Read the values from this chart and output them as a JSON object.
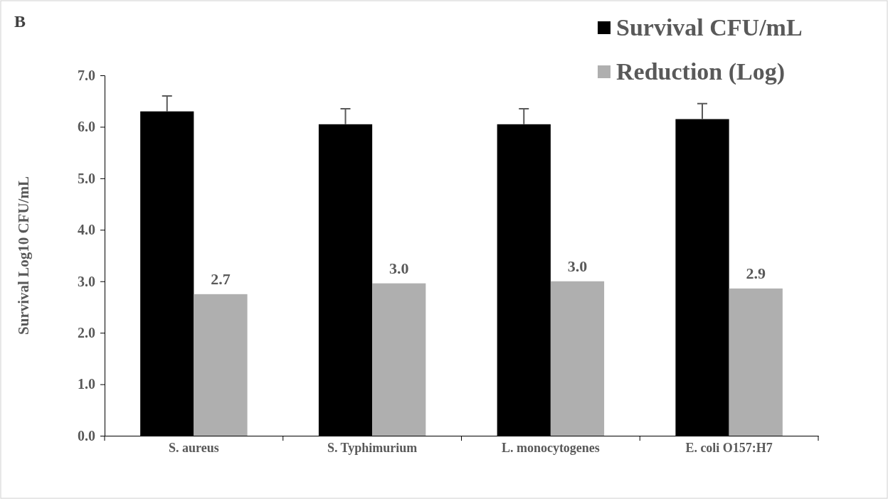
{
  "chart_data": {
    "type": "bar",
    "title": "B",
    "ylabel": "Survival Log10 CFU/mL",
    "categories": [
      "S. aureus",
      "S. Typhimurium",
      "L. monocytogenes",
      "E. coli O157:H7"
    ],
    "series": [
      {
        "name": "Survival CFU/mL",
        "color": "#000000",
        "values": [
          6.3,
          6.05,
          6.05,
          6.15
        ],
        "errors": [
          0.3,
          0.3,
          0.3,
          0.3
        ]
      },
      {
        "name": "Reduction (Log)",
        "color": "#afafaf",
        "values": [
          2.75,
          2.96,
          3.0,
          2.86
        ],
        "value_labels": [
          "2.7",
          "3.0",
          "3.0",
          "2.9"
        ]
      }
    ],
    "ylim": [
      0,
      7
    ],
    "yticks": [
      {
        "value": 0,
        "label": "0.0"
      },
      {
        "value": 1,
        "label": "1.0"
      },
      {
        "value": 2,
        "label": "2.0"
      },
      {
        "value": 3,
        "label": "3.0"
      },
      {
        "value": 4,
        "label": "4.0"
      },
      {
        "value": 5,
        "label": "5.0"
      },
      {
        "value": 6,
        "label": "6.0"
      },
      {
        "value": 7,
        "label": "7.0"
      }
    ],
    "legend": "top right"
  }
}
